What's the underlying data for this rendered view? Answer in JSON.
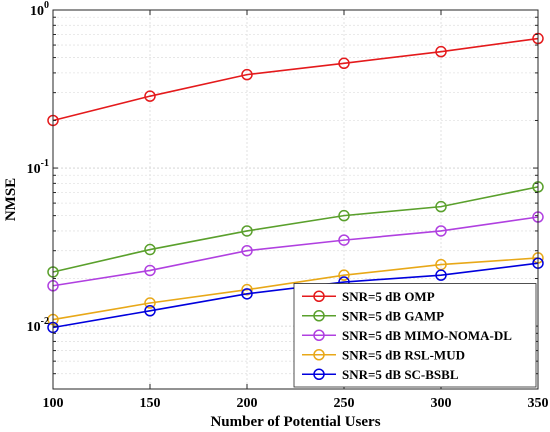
{
  "chart_data": {
    "type": "line",
    "xlabel": "Number of Potential Users",
    "ylabel": "NMSE",
    "yscale": "log",
    "xlim": [
      100,
      350
    ],
    "ylim": [
      0.004,
      1
    ],
    "grid": true,
    "legend_position": "bottom-right",
    "x": [
      100,
      150,
      200,
      250,
      300,
      350
    ],
    "x_ticks": [
      "100",
      "150",
      "200",
      "250",
      "300",
      "350"
    ],
    "y_ticks": [
      {
        "value": 0.01,
        "base": "10",
        "exp": "-2"
      },
      {
        "value": 0.1,
        "base": "10",
        "exp": "-1"
      },
      {
        "value": 1,
        "base": "10",
        "exp": "0"
      }
    ],
    "series": [
      {
        "name": "SNR=5 dB OMP",
        "color": "#e41a1c",
        "marker": "circle",
        "values": [
          0.2,
          0.285,
          0.39,
          0.46,
          0.545,
          0.66
        ]
      },
      {
        "name": "SNR=5 dB GAMP",
        "color": "#5aa02c",
        "marker": "circle",
        "values": [
          0.022,
          0.0305,
          0.04,
          0.05,
          0.057,
          0.076
        ]
      },
      {
        "name": "SNR=5 dB MIMO-NOMA-DL",
        "color": "#b040e0",
        "marker": "circle",
        "values": [
          0.018,
          0.0225,
          0.03,
          0.035,
          0.04,
          0.049
        ]
      },
      {
        "name": "SNR=5 dB RSL-MUD",
        "color": "#e8a818",
        "marker": "circle",
        "values": [
          0.011,
          0.014,
          0.017,
          0.021,
          0.0245,
          0.027
        ]
      },
      {
        "name": "SNR=5 dB SC-BSBL",
        "color": "#0000dd",
        "marker": "circle",
        "values": [
          0.0098,
          0.0125,
          0.016,
          0.019,
          0.021,
          0.025
        ]
      }
    ]
  }
}
